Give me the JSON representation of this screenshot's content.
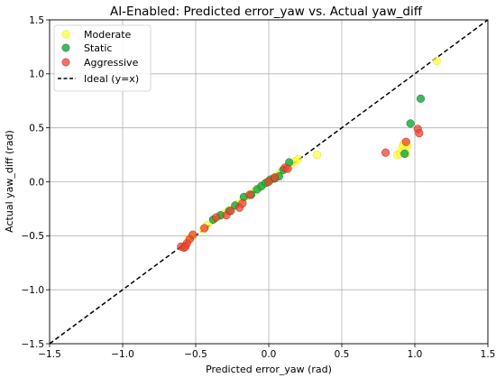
{
  "chart_data": {
    "type": "scatter",
    "title": "AI-Enabled: Predicted error_yaw vs. Actual yaw_diff",
    "xlabel": "Predicted error_yaw (rad)",
    "ylabel": "Actual yaw_diff (rad)",
    "xlim": [
      -1.5,
      1.5
    ],
    "ylim": [
      -1.5,
      1.5
    ],
    "xticks": [
      "−1.5",
      "−1.0",
      "−0.5",
      "0.0",
      "0.5",
      "1.0",
      "1.5"
    ],
    "yticks": [
      "−1.5",
      "−1.0",
      "−0.5",
      "0.0",
      "0.5",
      "1.0",
      "1.5"
    ],
    "xtick_values": [
      -1.5,
      -1.0,
      -0.5,
      0.0,
      0.5,
      1.0,
      1.5
    ],
    "ytick_values": [
      -1.5,
      -1.0,
      -0.5,
      0.0,
      0.5,
      1.0,
      1.5
    ],
    "grid": true,
    "legend_position": "top-left",
    "series": [
      {
        "name": "Moderate",
        "color": "#ffff33",
        "points": [
          [
            -0.55,
            -0.53
          ],
          [
            -0.52,
            -0.5
          ],
          [
            -0.45,
            -0.44
          ],
          [
            -0.42,
            -0.4
          ],
          [
            -0.38,
            -0.35
          ],
          [
            -0.34,
            -0.32
          ],
          [
            -0.3,
            -0.29
          ],
          [
            -0.27,
            -0.26
          ],
          [
            -0.22,
            -0.21
          ],
          [
            -0.18,
            -0.17
          ],
          [
            -0.14,
            -0.13
          ],
          [
            -0.1,
            -0.09
          ],
          [
            -0.06,
            -0.05
          ],
          [
            -0.03,
            -0.02
          ],
          [
            0.0,
            0.01
          ],
          [
            0.03,
            0.03
          ],
          [
            0.06,
            0.06
          ],
          [
            0.09,
            0.1
          ],
          [
            0.12,
            0.13
          ],
          [
            0.15,
            0.16
          ],
          [
            0.18,
            0.19
          ],
          [
            0.2,
            0.21
          ],
          [
            0.33,
            0.25
          ],
          [
            0.88,
            0.25
          ],
          [
            0.9,
            0.26
          ],
          [
            0.91,
            0.3
          ],
          [
            0.92,
            0.34
          ],
          [
            0.93,
            0.36
          ],
          [
            0.94,
            0.26
          ],
          [
            0.95,
            0.33
          ],
          [
            1.15,
            1.12
          ]
        ]
      },
      {
        "name": "Static",
        "color": "#22aa44",
        "points": [
          [
            -0.38,
            -0.35
          ],
          [
            -0.33,
            -0.31
          ],
          [
            -0.27,
            -0.27
          ],
          [
            -0.23,
            -0.22
          ],
          [
            -0.17,
            -0.14
          ],
          [
            -0.12,
            -0.12
          ],
          [
            -0.08,
            -0.07
          ],
          [
            -0.05,
            -0.04
          ],
          [
            -0.02,
            -0.01
          ],
          [
            0.01,
            0.02
          ],
          [
            0.04,
            0.03
          ],
          [
            0.07,
            0.05
          ],
          [
            0.1,
            0.11
          ],
          [
            0.14,
            0.18
          ],
          [
            0.93,
            0.26
          ],
          [
            0.97,
            0.54
          ],
          [
            1.04,
            0.77
          ]
        ]
      },
      {
        "name": "Aggressive",
        "color": "#ee4433",
        "points": [
          [
            -0.6,
            -0.6
          ],
          [
            -0.58,
            -0.61
          ],
          [
            -0.56,
            -0.57
          ],
          [
            -0.57,
            -0.6
          ],
          [
            -0.54,
            -0.53
          ],
          [
            -0.52,
            -0.49
          ],
          [
            -0.44,
            -0.43
          ],
          [
            -0.36,
            -0.33
          ],
          [
            -0.29,
            -0.31
          ],
          [
            -0.26,
            -0.27
          ],
          [
            -0.2,
            -0.24
          ],
          [
            -0.18,
            -0.2
          ],
          [
            -0.13,
            -0.12
          ],
          [
            0.0,
            0.0
          ],
          [
            0.04,
            0.04
          ],
          [
            0.11,
            0.13
          ],
          [
            0.13,
            0.12
          ],
          [
            0.8,
            0.27
          ],
          [
            0.94,
            0.37
          ],
          [
            1.02,
            0.49
          ],
          [
            1.03,
            0.45
          ]
        ]
      }
    ],
    "reference_line": {
      "name": "Ideal (y=x)",
      "from": [
        -1.5,
        -1.5
      ],
      "to": [
        1.5,
        1.5
      ],
      "style": "dashed",
      "color": "#000000"
    }
  }
}
